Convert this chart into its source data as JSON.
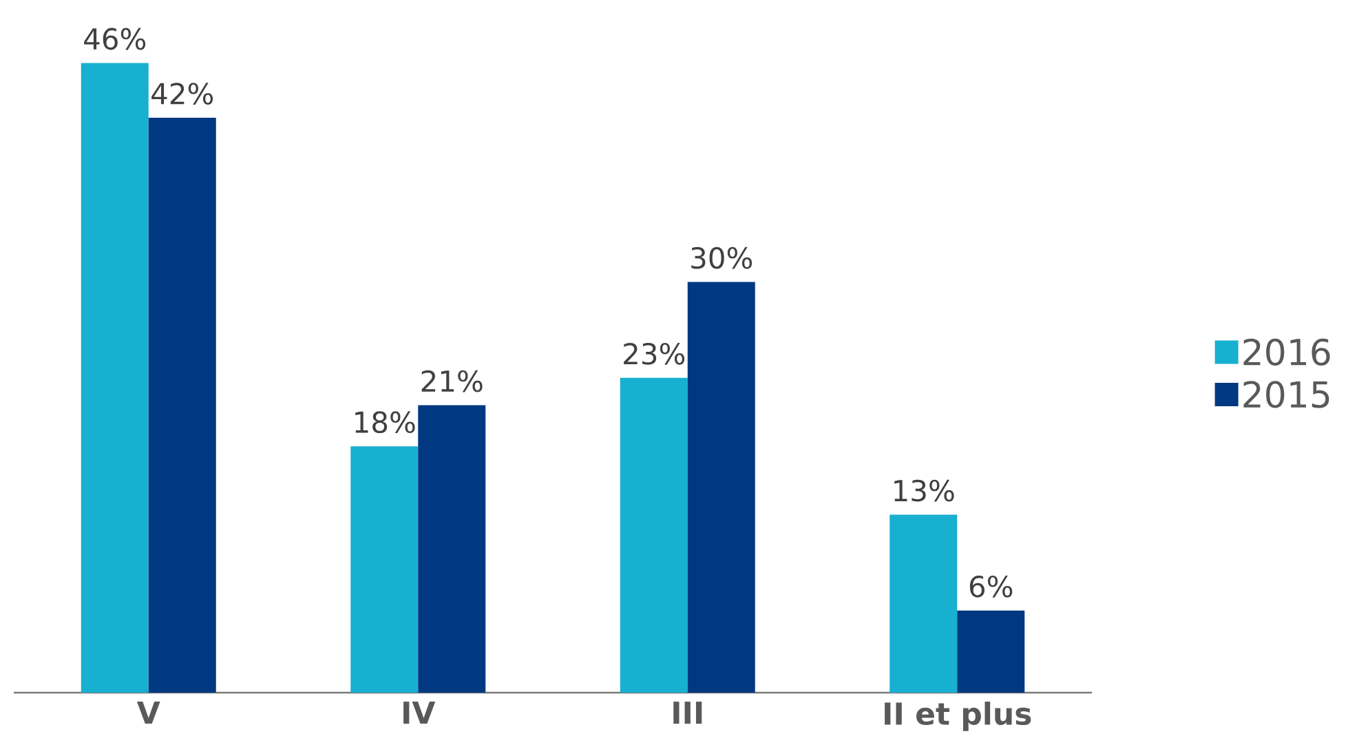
{
  "chart_data": {
    "type": "bar",
    "categories": [
      "V",
      "IV",
      "III",
      "II et plus"
    ],
    "series": [
      {
        "name": "2016",
        "color": "#18b0d0",
        "values": [
          46,
          18,
          23,
          13
        ],
        "value_labels": [
          "46%",
          "18%",
          "23%",
          "13%"
        ]
      },
      {
        "name": "2015",
        "color": "#003882",
        "values": [
          42,
          21,
          30,
          6
        ],
        "value_labels": [
          "42%",
          "21%",
          "30%",
          "6%"
        ]
      }
    ],
    "legend": "right"
  }
}
